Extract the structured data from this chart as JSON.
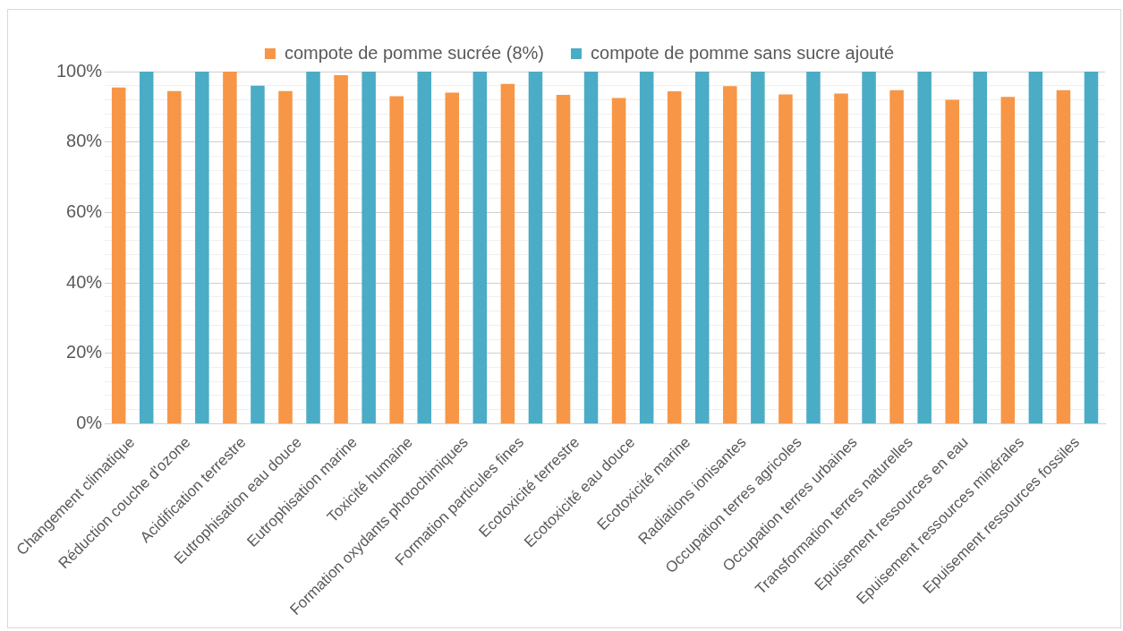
{
  "chart_data": {
    "type": "bar",
    "categories": [
      "Changement climatique",
      "Réduction couche d'ozone",
      "Acidification terrestre",
      "Eutrophisation eau douce",
      "Eutrophisation marine",
      "Toxicité humaine",
      "Formation oxydants photochimiques",
      "Formation particules fines",
      "Ecotoxicité terrestre",
      "Ecotoxicité eau douce",
      "Ecotoxicité marine",
      "Radiations ionisantes",
      "Occupation terres agricoles",
      "Occupation terres urbaines",
      "Transformation terres naturelles",
      "Epuisement ressources en eau",
      "Epuisement ressources minérales",
      "Epuisement ressources fossiles"
    ],
    "series": [
      {
        "name": "compote de pomme sucrée (8%)",
        "color": "#f79646",
        "values": [
          95.5,
          94.5,
          100,
          94.5,
          99,
          93,
          94,
          96.5,
          93.4,
          92.5,
          94.4,
          95.9,
          93.5,
          93.8,
          94.7,
          92,
          92.8,
          94.7
        ]
      },
      {
        "name": "compote de pomme sans sucre ajouté",
        "color": "#4bacc6",
        "values": [
          100,
          100,
          96,
          100,
          100,
          100,
          100,
          100,
          100,
          100,
          100,
          100,
          100,
          100,
          100,
          100,
          100,
          100
        ]
      }
    ],
    "ylim": [
      0,
      100
    ],
    "yticks": [
      {
        "value": 0,
        "label": "0%"
      },
      {
        "value": 4,
        "label": null
      },
      {
        "value": 8,
        "label": null
      },
      {
        "value": 12,
        "label": null
      },
      {
        "value": 16,
        "label": null
      },
      {
        "value": 20,
        "label": "20%"
      },
      {
        "value": 24,
        "label": null
      },
      {
        "value": 28,
        "label": null
      },
      {
        "value": 32,
        "label": null
      },
      {
        "value": 36,
        "label": null
      },
      {
        "value": 40,
        "label": "40%"
      },
      {
        "value": 44,
        "label": null
      },
      {
        "value": 48,
        "label": null
      },
      {
        "value": 52,
        "label": null
      },
      {
        "value": 56,
        "label": null
      },
      {
        "value": 60,
        "label": "60%"
      },
      {
        "value": 64,
        "label": null
      },
      {
        "value": 68,
        "label": null
      },
      {
        "value": 72,
        "label": null
      },
      {
        "value": 76,
        "label": null
      },
      {
        "value": 80,
        "label": "80%"
      },
      {
        "value": 84,
        "label": null
      },
      {
        "value": 88,
        "label": null
      },
      {
        "value": 92,
        "label": null
      },
      {
        "value": 96,
        "label": null
      },
      {
        "value": 100,
        "label": "100%"
      }
    ],
    "grid": "y",
    "legend": "top"
  }
}
